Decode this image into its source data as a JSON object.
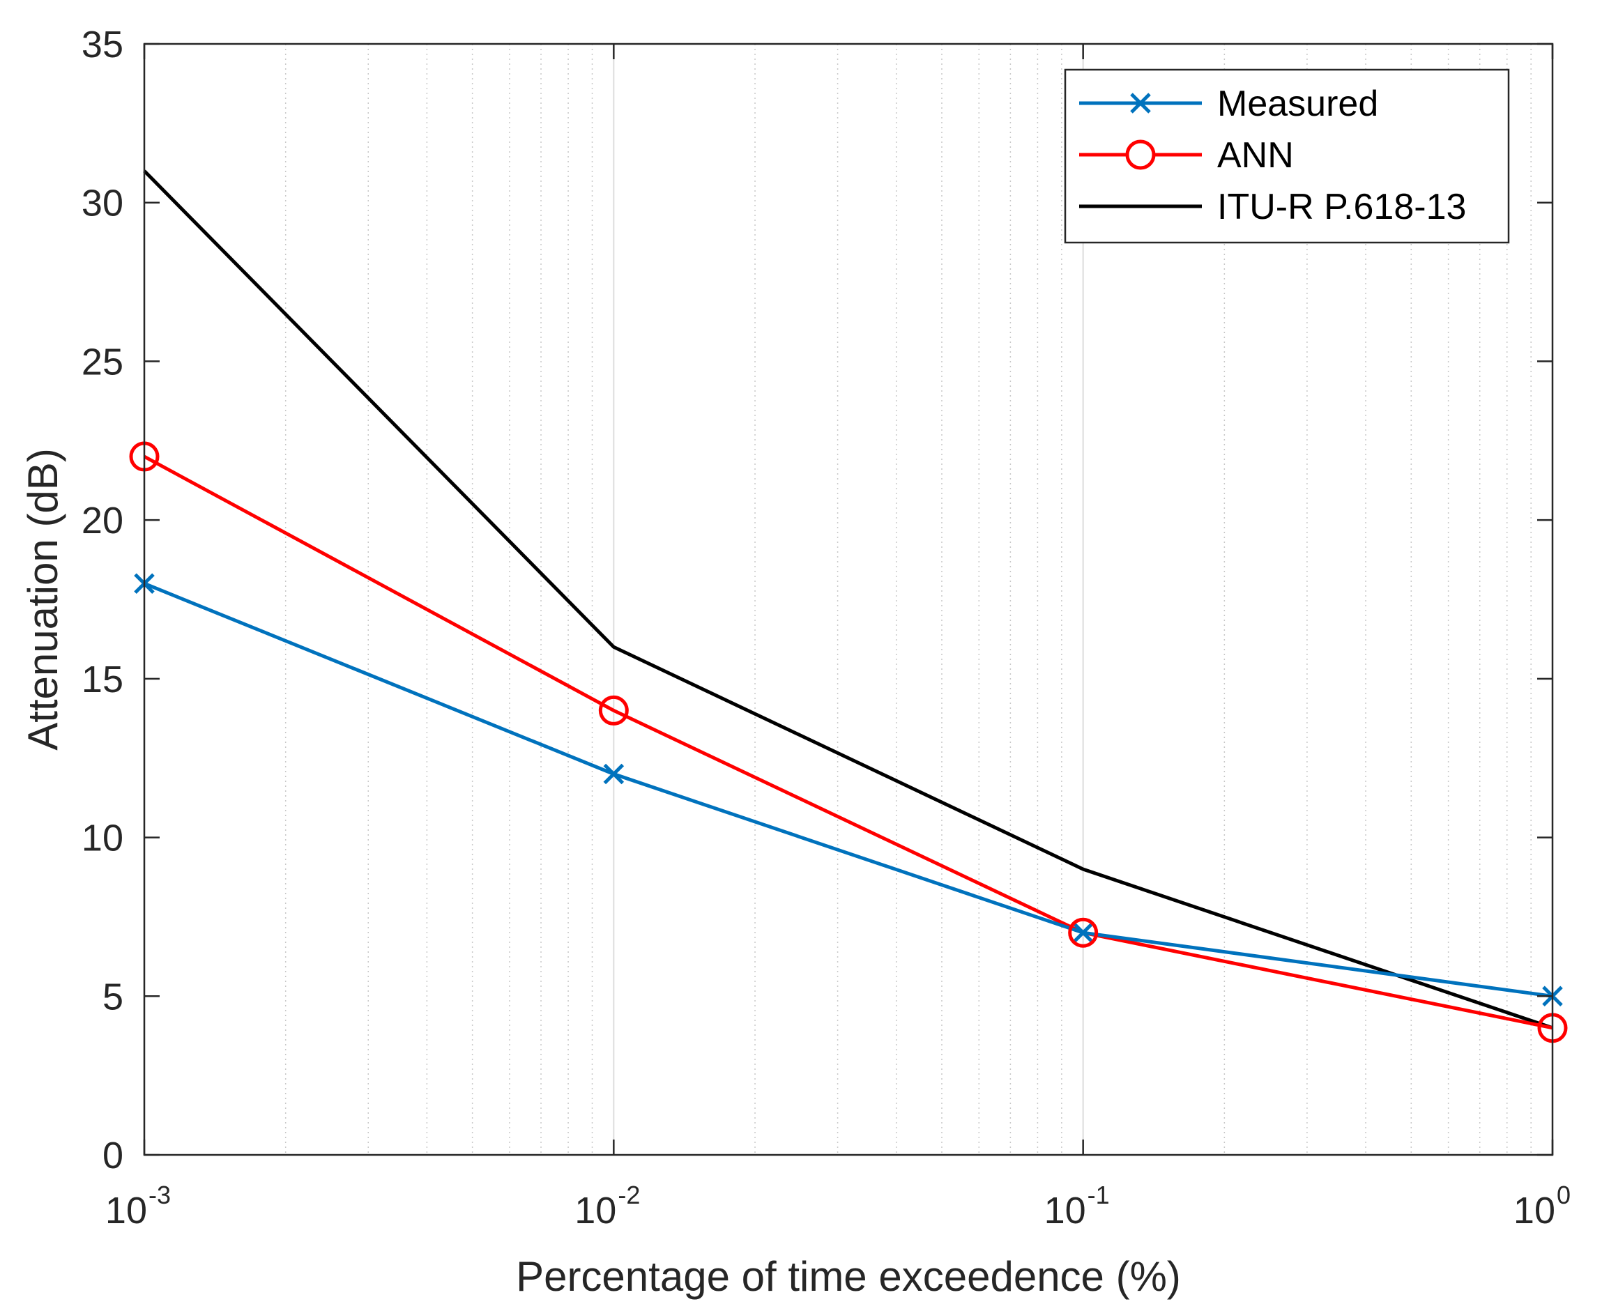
{
  "chart_data": {
    "type": "line",
    "title": "",
    "xlabel": "Percentage of time exceedence (%)",
    "ylabel": "Attenuation (dB)",
    "xscale": "log",
    "xlim": [
      0.001,
      1
    ],
    "ylim": [
      0,
      35
    ],
    "grid": "x-major-and-minor",
    "legend_position": "top-right",
    "x": [
      0.001,
      0.01,
      0.1,
      1
    ],
    "x_ticks": [
      {
        "value": 0.001,
        "base": "10",
        "exp": "-3"
      },
      {
        "value": 0.01,
        "base": "10",
        "exp": "-2"
      },
      {
        "value": 0.1,
        "base": "10",
        "exp": "-1"
      },
      {
        "value": 1,
        "base": "10",
        "exp": "0"
      }
    ],
    "y_ticks": [
      0,
      5,
      10,
      15,
      20,
      25,
      30,
      35
    ],
    "series": [
      {
        "name": "Measured",
        "color": "#0072BD",
        "marker": "x",
        "values": [
          18,
          12,
          7,
          5
        ]
      },
      {
        "name": "ANN",
        "color": "#FF0000",
        "marker": "o",
        "values": [
          22,
          14,
          7,
          4
        ]
      },
      {
        "name": "ITU-R P.618-13",
        "color": "#000000",
        "marker": "none",
        "values": [
          31,
          16,
          9,
          4
        ]
      }
    ]
  }
}
